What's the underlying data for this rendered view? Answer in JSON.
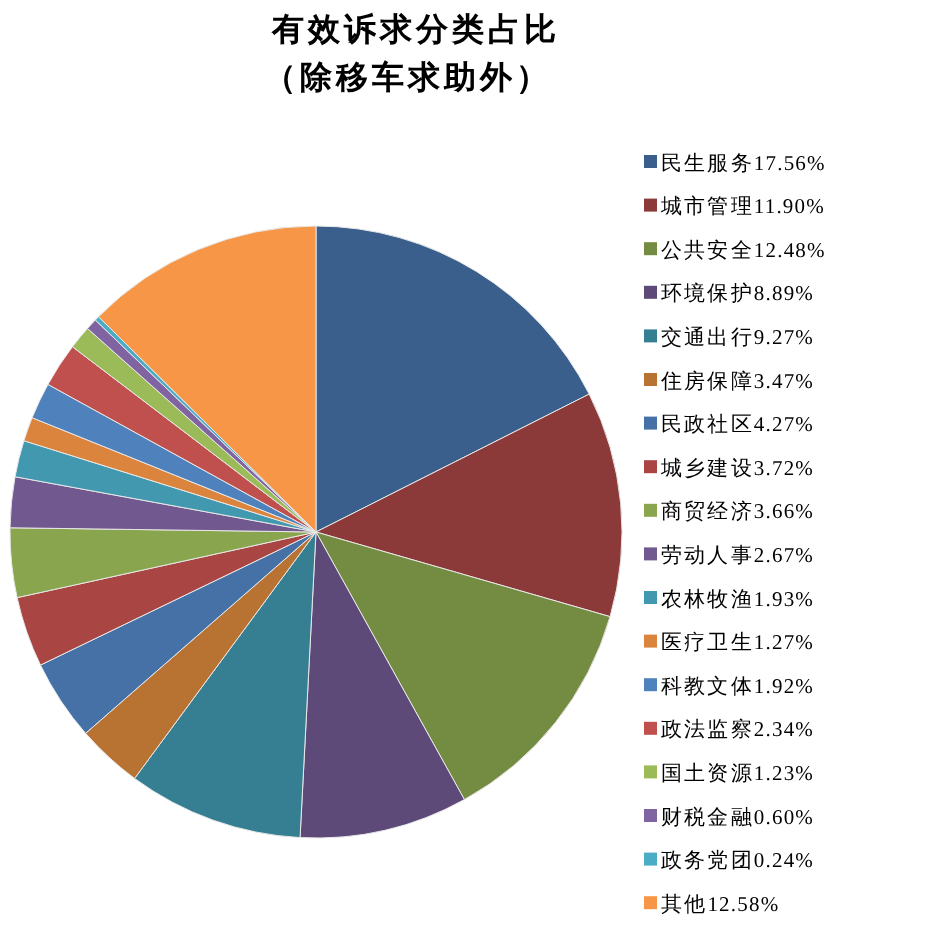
{
  "chart_data": {
    "type": "pie",
    "title": "有效诉求分类占比",
    "subtitle": "（除移车求助外）",
    "categories": [
      "民生服务",
      "城市管理",
      "公共安全",
      "环境保护",
      "交通出行",
      "住房保障",
      "民政社区",
      "城乡建设",
      "商贸经济",
      "劳动人事",
      "农林牧渔",
      "医疗卫生",
      "科教文体",
      "政法监察",
      "国土资源",
      "财税金融",
      "政务党团",
      "其他"
    ],
    "values": [
      17.56,
      11.9,
      12.48,
      8.89,
      9.27,
      3.47,
      4.27,
      3.72,
      3.66,
      2.67,
      1.93,
      1.27,
      1.92,
      2.34,
      1.23,
      0.6,
      0.24,
      12.58
    ],
    "value_labels": [
      "17.56%",
      "11.90%",
      "12.48%",
      "8.89%",
      "9.27%",
      "3.47%",
      "4.27%",
      "3.72%",
      "3.66%",
      "2.67%",
      "1.93%",
      "1.27%",
      "1.92%",
      "2.34%",
      "1.23%",
      "0.60%",
      "0.24%",
      "12.58%"
    ],
    "colors": [
      "#3b5f8c",
      "#8b3a39",
      "#748c41",
      "#5e4a79",
      "#367f92",
      "#b87333",
      "#4571a6",
      "#a94644",
      "#89a54e",
      "#71588f",
      "#4198af",
      "#db843d",
      "#4f81bd",
      "#c0504d",
      "#9bbb59",
      "#8064a2",
      "#4bacc6",
      "#f79646"
    ],
    "legend": "right"
  }
}
